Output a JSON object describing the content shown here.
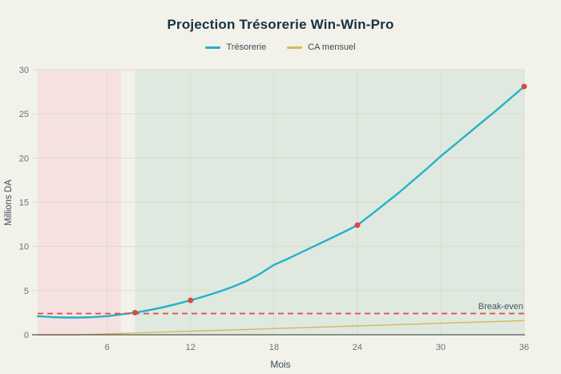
{
  "colors": {
    "background": "#f2f1ea",
    "title_text": "#17323f",
    "tick_text": "#6a737c",
    "axis_label_text": "#3f4c55",
    "grid_line": "#d9d8cf",
    "axis_line": "#55584f",
    "tresorerie_line": "#25b1c9",
    "ca_line": "#d3b95b",
    "break_even_line": "#e0484f",
    "marker_dot": "#d94a47",
    "loss_region": "#f5e2e0",
    "profit_region": "#e0e9df"
  },
  "chart_data": {
    "type": "line",
    "title": "Projection Trésorerie Win-Win-Pro",
    "xlabel": "Mois",
    "ylabel": "Millions DA",
    "xlim": [
      1,
      36
    ],
    "ylim": [
      0,
      30
    ],
    "x_ticks": [
      6,
      12,
      18,
      24,
      30,
      36
    ],
    "y_ticks": [
      0,
      5,
      10,
      15,
      20,
      25,
      30
    ],
    "grid": true,
    "legend_position": "top-center",
    "x": [
      1,
      2,
      3,
      4,
      5,
      6,
      7,
      8,
      9,
      10,
      11,
      12,
      13,
      14,
      15,
      16,
      17,
      18,
      19,
      20,
      21,
      22,
      23,
      24,
      25,
      26,
      27,
      28,
      29,
      30,
      31,
      32,
      33,
      34,
      35,
      36
    ],
    "series": [
      {
        "name": "Trésorerie",
        "color": "#25b1c9",
        "width": 2.4,
        "values": [
          2.1,
          2.0,
          1.95,
          1.95,
          2.0,
          2.1,
          2.3,
          2.5,
          2.78,
          3.1,
          3.48,
          3.9,
          4.35,
          4.85,
          5.4,
          6.05,
          6.9,
          7.9,
          8.6,
          9.35,
          10.1,
          10.85,
          11.6,
          12.4,
          13.6,
          14.85,
          16.1,
          17.45,
          18.8,
          20.2,
          21.5,
          22.8,
          24.1,
          25.4,
          26.75,
          28.1
        ]
      },
      {
        "name": "CA mensuel",
        "color": "#d3b95b",
        "width": 1.4,
        "values": [
          0,
          0,
          0,
          0,
          0.05,
          0.1,
          0.15,
          0.2,
          0.25,
          0.3,
          0.35,
          0.4,
          0.45,
          0.5,
          0.55,
          0.6,
          0.65,
          0.7,
          0.75,
          0.8,
          0.85,
          0.9,
          0.95,
          1.0,
          1.05,
          1.1,
          1.15,
          1.2,
          1.25,
          1.3,
          1.35,
          1.4,
          1.45,
          1.5,
          1.55,
          1.6
        ]
      }
    ],
    "markers": {
      "on_series": "Trésorerie",
      "color": "#d94a47",
      "months": [
        8,
        12,
        24,
        36
      ],
      "values": [
        2.5,
        3.9,
        12.4,
        28.1
      ]
    },
    "break_even": {
      "label": "Break-even",
      "value": 2.4,
      "color": "#e0484f"
    },
    "regions": [
      {
        "name": "loss-zone",
        "from": 1,
        "to": 7,
        "color": "#f5e2e0"
      },
      {
        "name": "profit-zone",
        "from": 8,
        "to": 36,
        "color": "#e0e9df"
      }
    ]
  }
}
